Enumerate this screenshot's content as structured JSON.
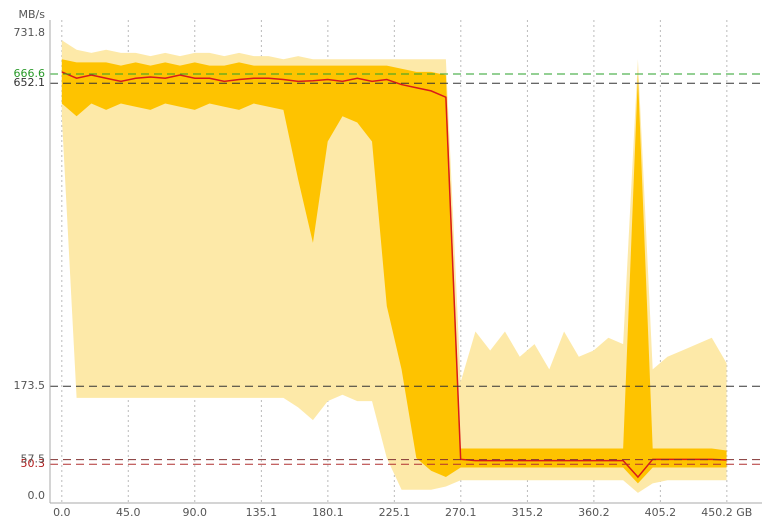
{
  "chart_data": {
    "type": "area",
    "y_unit": "MB/s",
    "x": [
      0,
      10,
      20,
      30,
      40,
      50,
      60,
      70,
      80,
      90,
      100,
      110,
      120,
      130,
      140,
      150,
      160,
      170,
      180,
      190,
      200,
      210,
      220,
      230,
      240,
      250,
      260,
      270,
      280,
      290,
      300,
      310,
      320,
      330,
      340,
      350,
      360,
      370,
      380,
      390,
      400,
      410,
      420,
      430,
      440,
      450
    ],
    "series": [
      {
        "color": "#fde9a8",
        "values": [
          720,
          705,
          700,
          705,
          700,
          700,
          695,
          700,
          695,
          700,
          700,
          695,
          700,
          695,
          695,
          690,
          695,
          690,
          690,
          690,
          690,
          690,
          690,
          690,
          690,
          690,
          690,
          180,
          260,
          230,
          260,
          220,
          240,
          200,
          260,
          220,
          230,
          250,
          240,
          690,
          200,
          220,
          230,
          240,
          250,
          210
        ],
        "lower": [
          600,
          155,
          155,
          155,
          155,
          155,
          155,
          155,
          155,
          155,
          155,
          155,
          155,
          155,
          155,
          155,
          140,
          120,
          150,
          160,
          150,
          150,
          60,
          10,
          10,
          10,
          15,
          25,
          25,
          25,
          25,
          25,
          25,
          25,
          25,
          25,
          25,
          25,
          25,
          5,
          20,
          25,
          25,
          25,
          25,
          25
        ]
      },
      {
        "color": "#fec300",
        "values": [
          690,
          685,
          685,
          685,
          680,
          685,
          680,
          685,
          680,
          685,
          680,
          680,
          685,
          680,
          680,
          680,
          680,
          680,
          680,
          680,
          680,
          680,
          680,
          675,
          670,
          670,
          665,
          75,
          75,
          75,
          75,
          75,
          75,
          75,
          75,
          75,
          75,
          75,
          75,
          666,
          75,
          75,
          75,
          75,
          75,
          72
        ],
        "lower": [
          620,
          600,
          620,
          610,
          620,
          615,
          610,
          620,
          615,
          610,
          620,
          615,
          610,
          620,
          615,
          610,
          500,
          400,
          560,
          600,
          590,
          560,
          300,
          200,
          60,
          40,
          30,
          45,
          45,
          45,
          45,
          45,
          45,
          45,
          45,
          45,
          45,
          45,
          45,
          20,
          45,
          45,
          45,
          45,
          45,
          45
        ]
      },
      {
        "color": "#d91a1a",
        "values": [
          670,
          660,
          665,
          660,
          655,
          660,
          662,
          660,
          665,
          660,
          660,
          655,
          658,
          660,
          660,
          658,
          655,
          656,
          658,
          655,
          660,
          655,
          658,
          650,
          645,
          640,
          630,
          58,
          56,
          56,
          56,
          56,
          56,
          56,
          56,
          56,
          56,
          56,
          56,
          30,
          58,
          58,
          58,
          58,
          58,
          57
        ]
      }
    ],
    "xlim": [
      -8,
      474
    ],
    "ylim": [
      -11,
      752
    ],
    "xticks": [
      {
        "value": 0,
        "label": "0.0"
      },
      {
        "value": 45,
        "label": "45.0"
      },
      {
        "value": 90,
        "label": "90.0"
      },
      135.1,
      180.1,
      225.1,
      270.1,
      315.2,
      360.2,
      405.2,
      {
        "value": 450.2,
        "label": "450.2 GB"
      }
    ],
    "yticks": [
      {
        "value": 0,
        "label": "0.0"
      },
      50.3,
      57.5,
      173.5,
      652.1,
      666.6,
      731.8
    ],
    "ytick_colors": [
      "#555555",
      "#b01818",
      "#555555",
      "#555555",
      "#333333",
      "#2a9a2a",
      "#555555"
    ],
    "reference_line_colors": [
      null,
      "#b03030",
      "#803030",
      "#333333",
      "#333333",
      "#2aa02a",
      null
    ],
    "grid": true
  }
}
